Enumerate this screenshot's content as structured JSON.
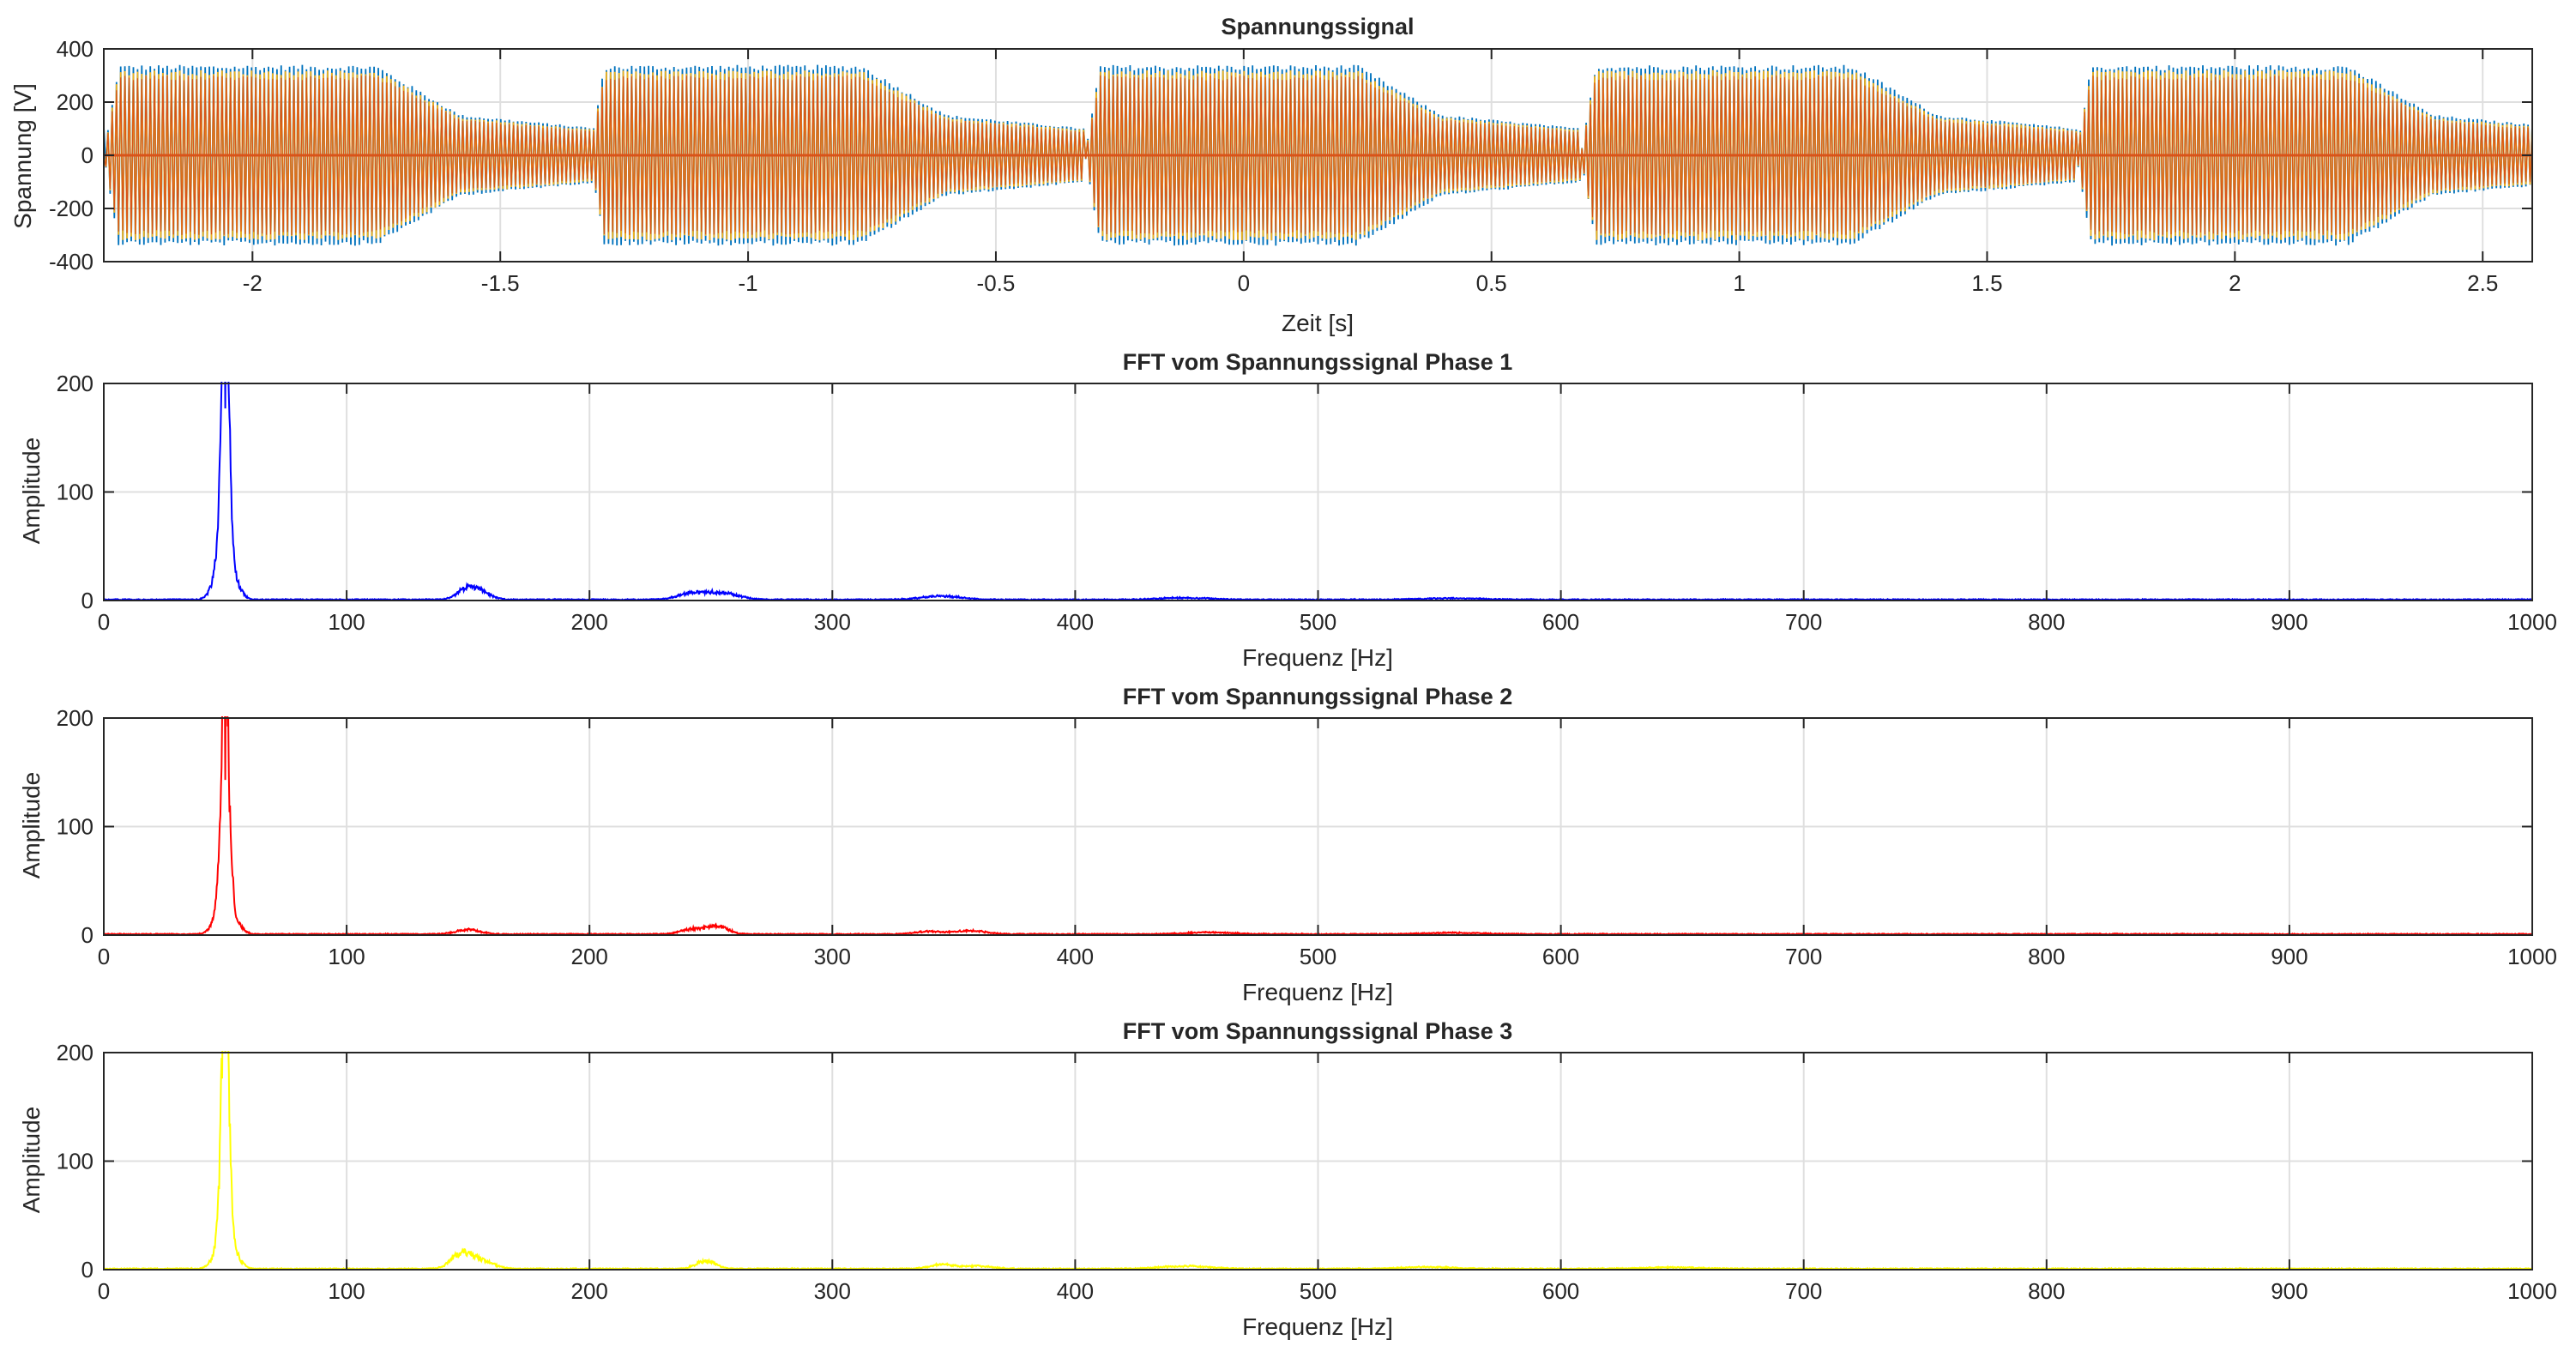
{
  "figure": {
    "background": "#ffffff",
    "axes_color": "#262626",
    "grid_color": "#dfdfdf"
  },
  "chart_data": [
    {
      "id": "ax0",
      "type": "line",
      "title": "Spannungssignal",
      "xlabel": "Zeit [s]",
      "ylabel": "Spannung [V]",
      "xlim": [
        -2.3,
        2.6
      ],
      "ylim": [
        -400,
        400
      ],
      "xticks": [
        -2,
        -1.5,
        -1,
        -0.5,
        0,
        0.5,
        1,
        1.5,
        2,
        2.5
      ],
      "yticks": [
        -400,
        -200,
        0,
        200,
        400
      ],
      "grid": true,
      "legend": "none",
      "burst_period_s": 1.0,
      "burst_starts_s": [
        -2.3,
        -1.32,
        -0.32,
        0.68,
        1.68
      ],
      "series": [
        {
          "color": "#0072BD",
          "peak_amplitude": 340,
          "decay_tail_amplitude": 120
        },
        {
          "color": "#EDB120",
          "peak_amplitude": 320
        },
        {
          "color": "#D95319",
          "peak_amplitude": 300
        }
      ]
    },
    {
      "id": "ax1",
      "type": "line",
      "title": "FFT vom Spannungssignal Phase 1",
      "xlabel": "Frequenz [Hz]",
      "ylabel": "Amplitude",
      "xlim": [
        0,
        1000
      ],
      "ylim": [
        0,
        200
      ],
      "xticks": [
        0,
        100,
        200,
        300,
        400,
        500,
        600,
        700,
        800,
        900,
        1000
      ],
      "yticks": [
        0,
        100,
        200
      ],
      "grid": true,
      "color": "#0000ff",
      "peaks": [
        {
          "f": 50,
          "a": 177,
          "w": 1.2
        },
        {
          "f": 49,
          "a": 103,
          "w": 1.5
        },
        {
          "f": 51,
          "a": 95,
          "w": 1.5
        },
        {
          "f": 48,
          "a": 35,
          "w": 3
        },
        {
          "f": 53,
          "a": 22,
          "w": 3
        },
        {
          "f": 150,
          "a": 13,
          "w": 4
        },
        {
          "f": 156,
          "a": 6,
          "w": 4
        },
        {
          "f": 243,
          "a": 8,
          "w": 6
        },
        {
          "f": 256,
          "a": 7,
          "w": 6
        },
        {
          "f": 345,
          "a": 4,
          "w": 8
        },
        {
          "f": 445,
          "a": 2,
          "w": 10
        },
        {
          "f": 555,
          "a": 1.5,
          "w": 12
        }
      ]
    },
    {
      "id": "ax2",
      "type": "line",
      "title": "FFT vom Spannungssignal Phase 2",
      "xlabel": "Frequenz [Hz]",
      "ylabel": "Amplitude",
      "xlim": [
        0,
        1000
      ],
      "ylim": [
        0,
        200
      ],
      "xticks": [
        0,
        100,
        200,
        300,
        400,
        500,
        600,
        700,
        800,
        900,
        1000
      ],
      "yticks": [
        0,
        100,
        200
      ],
      "grid": true,
      "color": "#ff0000",
      "peaks": [
        {
          "f": 50,
          "a": 143,
          "w": 1.2
        },
        {
          "f": 49,
          "a": 95,
          "w": 1.5
        },
        {
          "f": 51,
          "a": 90,
          "w": 1.5
        },
        {
          "f": 48,
          "a": 25,
          "w": 3
        },
        {
          "f": 53,
          "a": 18,
          "w": 3
        },
        {
          "f": 150,
          "a": 5,
          "w": 5
        },
        {
          "f": 243,
          "a": 6,
          "w": 5
        },
        {
          "f": 253,
          "a": 9,
          "w": 4
        },
        {
          "f": 340,
          "a": 3,
          "w": 6
        },
        {
          "f": 357,
          "a": 4,
          "w": 6
        },
        {
          "f": 455,
          "a": 2,
          "w": 10
        },
        {
          "f": 555,
          "a": 1.5,
          "w": 12
        }
      ]
    },
    {
      "id": "ax3",
      "type": "line",
      "title": "FFT vom Spannungssignal Phase 3",
      "xlabel": "Frequenz [Hz]",
      "ylabel": "Amplitude",
      "xlim": [
        0,
        1000
      ],
      "ylim": [
        0,
        200
      ],
      "xticks": [
        0,
        100,
        200,
        300,
        400,
        500,
        600,
        700,
        800,
        900,
        1000
      ],
      "yticks": [
        0,
        100,
        200
      ],
      "grid": true,
      "color": "#ffff00",
      "peaks": [
        {
          "f": 50,
          "a": 200,
          "w": 1.2
        },
        {
          "f": 49,
          "a": 88,
          "w": 1.5
        },
        {
          "f": 51,
          "a": 82,
          "w": 1.5
        },
        {
          "f": 48,
          "a": 25,
          "w": 3
        },
        {
          "f": 53,
          "a": 18,
          "w": 3
        },
        {
          "f": 147,
          "a": 16,
          "w": 4
        },
        {
          "f": 155,
          "a": 10,
          "w": 5
        },
        {
          "f": 248,
          "a": 9,
          "w": 4
        },
        {
          "f": 345,
          "a": 5,
          "w": 5
        },
        {
          "f": 360,
          "a": 3,
          "w": 6
        },
        {
          "f": 445,
          "a": 3,
          "w": 10
        },
        {
          "f": 545,
          "a": 2,
          "w": 10
        },
        {
          "f": 645,
          "a": 1.5,
          "w": 12
        }
      ]
    }
  ]
}
